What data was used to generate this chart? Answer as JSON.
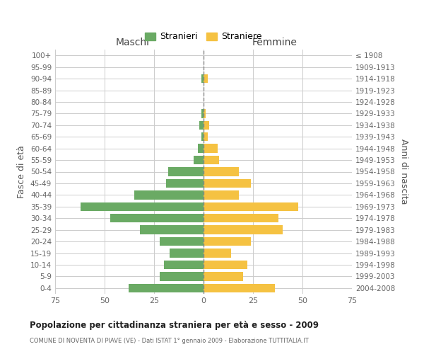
{
  "age_groups": [
    "0-4",
    "5-9",
    "10-14",
    "15-19",
    "20-24",
    "25-29",
    "30-34",
    "35-39",
    "40-44",
    "45-49",
    "50-54",
    "55-59",
    "60-64",
    "65-69",
    "70-74",
    "75-79",
    "80-84",
    "85-89",
    "90-94",
    "95-99",
    "100+"
  ],
  "birth_years": [
    "2004-2008",
    "1999-2003",
    "1994-1998",
    "1989-1993",
    "1984-1988",
    "1979-1983",
    "1974-1978",
    "1969-1973",
    "1964-1968",
    "1959-1963",
    "1954-1958",
    "1949-1953",
    "1944-1948",
    "1939-1943",
    "1934-1938",
    "1929-1933",
    "1924-1928",
    "1919-1923",
    "1914-1918",
    "1909-1913",
    "≤ 1908"
  ],
  "maschi": [
    38,
    22,
    20,
    17,
    22,
    32,
    47,
    62,
    35,
    19,
    18,
    5,
    3,
    1,
    2,
    1,
    0,
    0,
    1,
    0,
    0
  ],
  "femmine": [
    36,
    20,
    22,
    14,
    24,
    40,
    38,
    48,
    18,
    24,
    18,
    8,
    7,
    2,
    3,
    1,
    0,
    0,
    2,
    0,
    0
  ],
  "color_maschi": "#6aaa64",
  "color_femmine": "#f5c242",
  "title": "Popolazione per cittadinanza straniera per età e sesso - 2009",
  "subtitle": "COMUNE DI NOVENTA DI PIAVE (VE) - Dati ISTAT 1° gennaio 2009 - Elaborazione TUTTITALIA.IT",
  "ylabel_left": "Fasce di età",
  "ylabel_right": "Anni di nascita",
  "xlabel_left": "Maschi",
  "xlabel_right": "Femmine",
  "legend_maschi": "Stranieri",
  "legend_femmine": "Straniere",
  "xlim": 75,
  "background_color": "#ffffff",
  "grid_color": "#cccccc"
}
